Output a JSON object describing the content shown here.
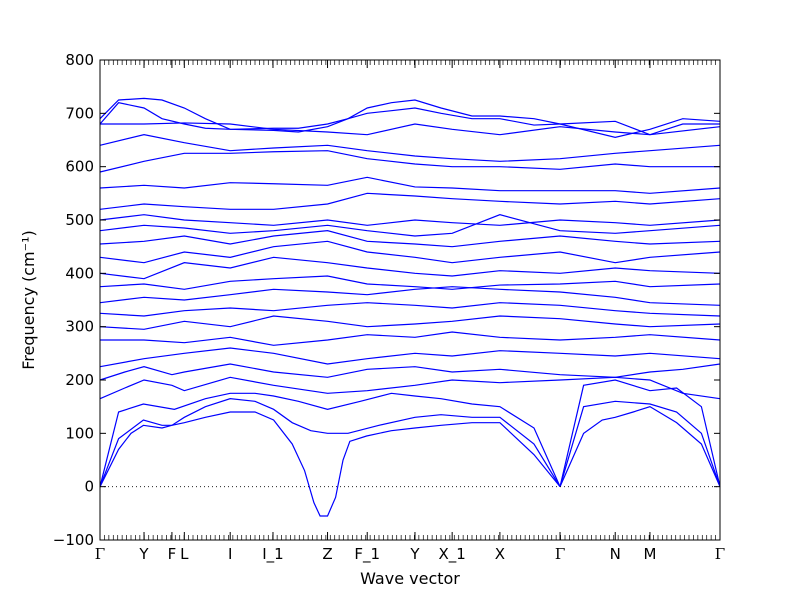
{
  "chart_data": {
    "type": "line",
    "xlabel": "Wave vector",
    "ylabel": "Frequency (cm⁻¹)",
    "ylim": [
      -100,
      800
    ],
    "yticks": [
      -100,
      0,
      100,
      200,
      300,
      400,
      500,
      600,
      700,
      800
    ],
    "ytick_labels": [
      "−100",
      "0",
      "100",
      "200",
      "300",
      "400",
      "500",
      "600",
      "700",
      "800"
    ],
    "xlim": [
      0,
      1
    ],
    "high_symmetry_points": [
      {
        "label": "Γ",
        "pos": 0.0
      },
      {
        "label": "Y",
        "pos": 0.071
      },
      {
        "label": "F",
        "pos": 0.116
      },
      {
        "label": "L",
        "pos": 0.136
      },
      {
        "label": "I",
        "pos": 0.21
      },
      {
        "label": "I_1",
        "pos": 0.279
      },
      {
        "label": "Z",
        "pos": 0.367
      },
      {
        "label": "F_1",
        "pos": 0.431
      },
      {
        "label": "Y",
        "pos": 0.508
      },
      {
        "label": "X_1",
        "pos": 0.568
      },
      {
        "label": "X",
        "pos": 0.645
      },
      {
        "label": "Γ",
        "pos": 0.742
      },
      {
        "label": "N",
        "pos": 0.831
      },
      {
        "label": "M",
        "pos": 0.887
      },
      {
        "label": "Γ",
        "pos": 1.0
      }
    ],
    "zero_line": true,
    "series_color": "#0000ff",
    "series": [
      {
        "x": [
          0,
          0.03,
          0.05,
          0.07,
          0.1,
          0.116,
          0.136,
          0.17,
          0.21,
          0.25,
          0.28,
          0.31,
          0.33,
          0.345,
          0.355,
          0.367,
          0.38,
          0.392,
          0.403,
          0.43,
          0.47,
          0.508,
          0.55,
          0.6,
          0.645,
          0.7,
          0.742
        ],
        "y": [
          0,
          70,
          100,
          115,
          110,
          115,
          120,
          130,
          140,
          140,
          125,
          80,
          30,
          -30,
          -55,
          -55,
          -20,
          50,
          85,
          95,
          105,
          110,
          115,
          120,
          120,
          60,
          0
        ]
      },
      {
        "x": [
          0.742,
          0.78,
          0.81,
          0.831,
          0.86,
          0.887,
          0.93,
          0.97,
          1
        ],
        "y": [
          0,
          100,
          125,
          130,
          140,
          150,
          120,
          80,
          0
        ]
      },
      {
        "x": [
          0,
          0.03,
          0.07,
          0.1,
          0.116,
          0.136,
          0.17,
          0.21,
          0.25,
          0.28,
          0.31,
          0.34,
          0.367,
          0.4,
          0.45,
          0.508,
          0.55,
          0.6,
          0.645,
          0.7,
          0.742
        ],
        "y": [
          0,
          90,
          125,
          115,
          115,
          130,
          150,
          165,
          160,
          145,
          120,
          105,
          100,
          100,
          115,
          130,
          135,
          130,
          130,
          80,
          0
        ]
      },
      {
        "x": [
          0.742,
          0.78,
          0.831,
          0.887,
          0.93,
          0.97,
          1
        ],
        "y": [
          0,
          150,
          160,
          155,
          140,
          100,
          0
        ]
      },
      {
        "x": [
          0,
          0.03,
          0.07,
          0.12,
          0.17,
          0.21,
          0.25,
          0.28,
          0.32,
          0.367,
          0.42,
          0.47,
          0.508,
          0.55,
          0.6,
          0.645,
          0.7,
          0.742
        ],
        "y": [
          0,
          140,
          155,
          145,
          165,
          175,
          175,
          170,
          160,
          145,
          160,
          175,
          170,
          165,
          155,
          150,
          110,
          0
        ]
      },
      {
        "x": [
          0.742,
          0.78,
          0.831,
          0.887,
          0.93,
          0.97,
          1
        ],
        "y": [
          0,
          190,
          200,
          180,
          185,
          150,
          0
        ]
      },
      {
        "x": [
          0,
          0.04,
          0.071,
          0.116,
          0.136,
          0.21,
          0.28,
          0.367,
          0.431,
          0.508,
          0.568,
          0.645,
          0.742,
          0.831,
          0.887,
          0.94,
          1
        ],
        "y": [
          165,
          185,
          200,
          190,
          180,
          205,
          190,
          175,
          180,
          190,
          200,
          195,
          200,
          205,
          200,
          175,
          165
        ]
      },
      {
        "x": [
          0,
          0.04,
          0.071,
          0.116,
          0.136,
          0.21,
          0.28,
          0.367,
          0.431,
          0.508,
          0.568,
          0.645,
          0.742,
          0.831,
          0.887,
          0.94,
          1
        ],
        "y": [
          200,
          215,
          225,
          210,
          215,
          230,
          215,
          205,
          220,
          225,
          215,
          220,
          210,
          205,
          215,
          220,
          230
        ]
      },
      {
        "x": [
          0,
          0.071,
          0.136,
          0.21,
          0.28,
          0.367,
          0.431,
          0.508,
          0.568,
          0.645,
          0.742,
          0.831,
          0.887,
          1
        ],
        "y": [
          225,
          240,
          250,
          260,
          250,
          230,
          240,
          250,
          245,
          255,
          250,
          245,
          250,
          240
        ]
      },
      {
        "x": [
          0,
          0.071,
          0.136,
          0.21,
          0.28,
          0.367,
          0.431,
          0.508,
          0.568,
          0.645,
          0.742,
          0.831,
          0.887,
          1
        ],
        "y": [
          275,
          275,
          270,
          280,
          265,
          275,
          285,
          280,
          290,
          280,
          275,
          280,
          285,
          275
        ]
      },
      {
        "x": [
          0,
          0.071,
          0.136,
          0.21,
          0.28,
          0.367,
          0.431,
          0.508,
          0.568,
          0.645,
          0.742,
          0.831,
          0.887,
          1
        ],
        "y": [
          300,
          295,
          310,
          300,
          320,
          310,
          300,
          305,
          310,
          320,
          315,
          305,
          300,
          305
        ]
      },
      {
        "x": [
          0,
          0.071,
          0.136,
          0.21,
          0.28,
          0.367,
          0.431,
          0.508,
          0.568,
          0.645,
          0.742,
          0.831,
          0.887,
          1
        ],
        "y": [
          325,
          320,
          330,
          335,
          330,
          340,
          345,
          340,
          335,
          345,
          340,
          330,
          325,
          320
        ]
      },
      {
        "x": [
          0,
          0.071,
          0.136,
          0.21,
          0.28,
          0.367,
          0.431,
          0.508,
          0.568,
          0.645,
          0.742,
          0.831,
          0.887,
          1
        ],
        "y": [
          345,
          355,
          350,
          360,
          370,
          365,
          360,
          370,
          375,
          370,
          365,
          355,
          345,
          340
        ]
      },
      {
        "x": [
          0,
          0.071,
          0.136,
          0.21,
          0.28,
          0.367,
          0.431,
          0.508,
          0.568,
          0.645,
          0.742,
          0.831,
          0.887,
          1
        ],
        "y": [
          375,
          380,
          370,
          385,
          390,
          395,
          380,
          375,
          370,
          378,
          380,
          385,
          375,
          380
        ]
      },
      {
        "x": [
          0,
          0.071,
          0.136,
          0.21,
          0.28,
          0.367,
          0.431,
          0.508,
          0.568,
          0.645,
          0.742,
          0.831,
          0.887,
          1
        ],
        "y": [
          400,
          390,
          420,
          410,
          430,
          420,
          410,
          400,
          395,
          405,
          400,
          410,
          405,
          400
        ]
      },
      {
        "x": [
          0,
          0.071,
          0.136,
          0.21,
          0.28,
          0.367,
          0.431,
          0.508,
          0.568,
          0.645,
          0.742,
          0.831,
          0.887,
          1
        ],
        "y": [
          430,
          420,
          440,
          430,
          450,
          460,
          440,
          430,
          420,
          430,
          440,
          420,
          430,
          440
        ]
      },
      {
        "x": [
          0,
          0.071,
          0.136,
          0.21,
          0.28,
          0.367,
          0.431,
          0.508,
          0.568,
          0.645,
          0.742,
          0.831,
          0.887,
          1
        ],
        "y": [
          455,
          460,
          470,
          455,
          470,
          480,
          460,
          455,
          450,
          460,
          470,
          460,
          455,
          460
        ]
      },
      {
        "x": [
          0,
          0.071,
          0.136,
          0.21,
          0.28,
          0.367,
          0.431,
          0.508,
          0.568,
          0.645,
          0.742,
          0.831,
          0.887,
          1
        ],
        "y": [
          480,
          490,
          485,
          475,
          480,
          490,
          480,
          470,
          475,
          510,
          480,
          475,
          480,
          490
        ]
      },
      {
        "x": [
          0,
          0.071,
          0.136,
          0.21,
          0.28,
          0.367,
          0.431,
          0.508,
          0.568,
          0.645,
          0.742,
          0.831,
          0.887,
          1
        ],
        "y": [
          500,
          510,
          500,
          495,
          490,
          500,
          490,
          500,
          495,
          490,
          500,
          495,
          490,
          500
        ]
      },
      {
        "x": [
          0,
          0.071,
          0.136,
          0.21,
          0.28,
          0.367,
          0.431,
          0.508,
          0.568,
          0.645,
          0.742,
          0.831,
          0.887,
          1
        ],
        "y": [
          520,
          530,
          525,
          520,
          520,
          530,
          550,
          545,
          540,
          535,
          530,
          535,
          530,
          540
        ]
      },
      {
        "x": [
          0,
          0.071,
          0.136,
          0.21,
          0.28,
          0.367,
          0.431,
          0.508,
          0.568,
          0.645,
          0.742,
          0.831,
          0.887,
          1
        ],
        "y": [
          560,
          565,
          560,
          570,
          568,
          565,
          580,
          562,
          560,
          555,
          555,
          555,
          550,
          560
        ]
      },
      {
        "x": [
          0,
          0.071,
          0.136,
          0.21,
          0.28,
          0.367,
          0.431,
          0.508,
          0.568,
          0.645,
          0.742,
          0.831,
          0.887,
          1
        ],
        "y": [
          590,
          610,
          625,
          625,
          628,
          630,
          615,
          605,
          600,
          600,
          595,
          605,
          600,
          600
        ]
      },
      {
        "x": [
          0,
          0.071,
          0.136,
          0.21,
          0.28,
          0.367,
          0.431,
          0.508,
          0.568,
          0.645,
          0.742,
          0.831,
          0.887,
          1
        ],
        "y": [
          640,
          660,
          645,
          630,
          635,
          640,
          630,
          620,
          615,
          610,
          615,
          625,
          630,
          640
        ]
      },
      {
        "x": [
          0,
          0.071,
          0.136,
          0.21,
          0.28,
          0.367,
          0.431,
          0.508,
          0.568,
          0.645,
          0.742,
          0.831,
          0.887,
          1
        ],
        "y": [
          680,
          680,
          682,
          680,
          670,
          665,
          660,
          680,
          670,
          660,
          675,
          665,
          660,
          675
        ]
      },
      {
        "x": [
          0,
          0.03,
          0.071,
          0.1,
          0.136,
          0.17,
          0.21,
          0.28,
          0.32,
          0.367,
          0.4,
          0.431,
          0.47,
          0.508,
          0.55,
          0.6,
          0.645,
          0.7,
          0.742,
          0.831,
          0.887,
          0.94,
          1
        ],
        "y": [
          680,
          720,
          710,
          690,
          680,
          672,
          670,
          672,
          672,
          680,
          690,
          700,
          705,
          710,
          700,
          690,
          690,
          678,
          680,
          685,
          660,
          680,
          680
        ]
      },
      {
        "x": [
          0,
          0.03,
          0.071,
          0.1,
          0.136,
          0.17,
          0.21,
          0.28,
          0.32,
          0.367,
          0.4,
          0.431,
          0.47,
          0.508,
          0.55,
          0.6,
          0.645,
          0.7,
          0.742,
          0.831,
          0.887,
          0.94,
          1
        ],
        "y": [
          690,
          725,
          728,
          725,
          710,
          690,
          670,
          668,
          665,
          675,
          690,
          710,
          720,
          725,
          710,
          695,
          695,
          690,
          680,
          655,
          670,
          690,
          685
        ]
      }
    ]
  }
}
